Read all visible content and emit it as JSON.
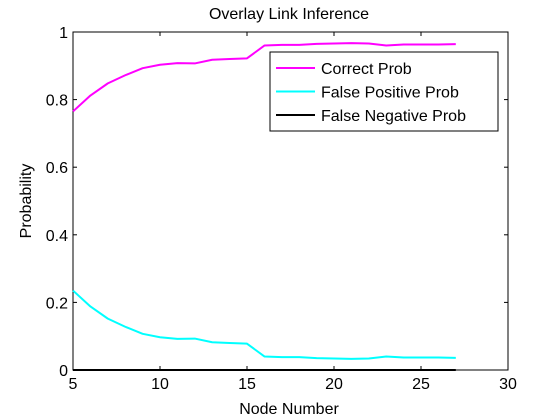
{
  "chart_data": {
    "type": "line",
    "title": "Overlay Link Inference",
    "xlabel": "Node Number",
    "ylabel": "Probability",
    "xlim": [
      5,
      30
    ],
    "ylim": [
      0,
      1
    ],
    "xticks": [
      5,
      10,
      15,
      20,
      25,
      30
    ],
    "yticks": [
      0,
      0.2,
      0.4,
      0.6,
      0.8,
      1
    ],
    "xtick_labels": [
      "5",
      "10",
      "15",
      "20",
      "25",
      "30"
    ],
    "ytick_labels": [
      "0",
      "0.2",
      "0.4",
      "0.6",
      "0.8",
      "1"
    ],
    "grid": false,
    "legend_position": "top-right",
    "x": [
      5,
      6,
      7,
      8,
      9,
      10,
      11,
      12,
      13,
      14,
      15,
      16,
      17,
      18,
      19,
      20,
      21,
      22,
      23,
      24,
      25,
      26,
      27
    ],
    "series": [
      {
        "name": "Correct Prob",
        "color": "#ff00ff",
        "values": [
          0.765,
          0.812,
          0.848,
          0.872,
          0.893,
          0.903,
          0.908,
          0.907,
          0.918,
          0.92,
          0.922,
          0.96,
          0.962,
          0.962,
          0.965,
          0.966,
          0.967,
          0.966,
          0.96,
          0.963,
          0.963,
          0.963,
          0.964
        ]
      },
      {
        "name": "False Positive Prob",
        "color": "#00ffff",
        "values": [
          0.235,
          0.188,
          0.152,
          0.128,
          0.107,
          0.097,
          0.092,
          0.093,
          0.082,
          0.08,
          0.078,
          0.04,
          0.038,
          0.038,
          0.035,
          0.034,
          0.033,
          0.034,
          0.04,
          0.037,
          0.037,
          0.037,
          0.036
        ]
      },
      {
        "name": "False Negative Prob",
        "color": "#000000",
        "values": [
          0,
          0,
          0,
          0,
          0,
          0,
          0,
          0,
          0,
          0,
          0,
          0,
          0,
          0,
          0,
          0,
          0,
          0,
          0,
          0,
          0,
          0,
          0
        ]
      }
    ]
  }
}
